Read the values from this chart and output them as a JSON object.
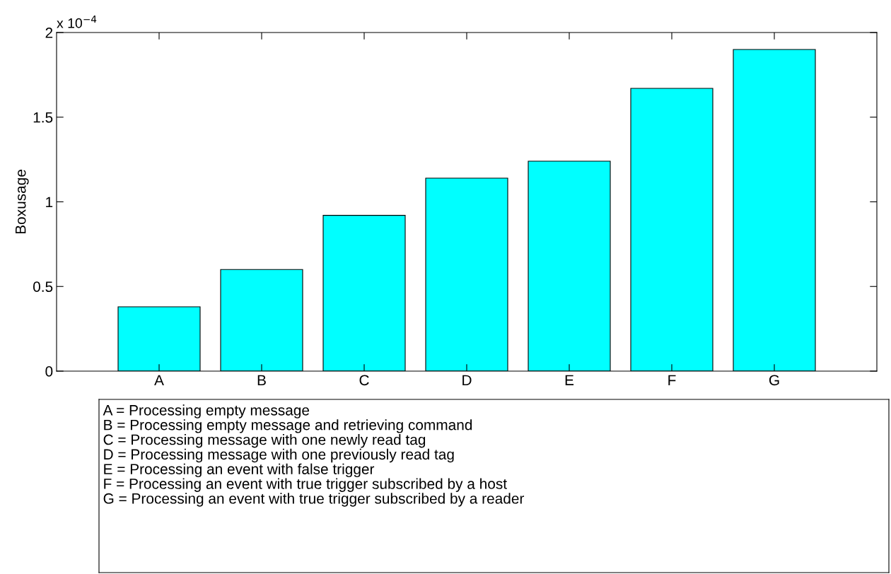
{
  "chart_data": {
    "type": "bar",
    "ylabel": "Boxusage",
    "categories": [
      "A",
      "B",
      "C",
      "D",
      "E",
      "F",
      "G"
    ],
    "values": [
      0.38,
      0.6,
      0.92,
      1.14,
      1.24,
      1.67,
      1.9
    ],
    "color": "#00ffff",
    "ylim": [
      0,
      2
    ],
    "yticks": [
      0,
      0.5,
      1,
      1.5,
      2
    ],
    "grid": false,
    "annotations": [
      "x 10$^{−4}$",
      "A = Processing empty message",
      "B = Processing empty message and retrieving command",
      "C = Processing message with one newly read tag",
      "D = Processing message with one previously read tag",
      "E = Processing an event with false trigger",
      "F = Processing an event with true trigger subscribed by a host",
      "G = Processing an event with true trigger subscribed by a reader"
    ]
  }
}
